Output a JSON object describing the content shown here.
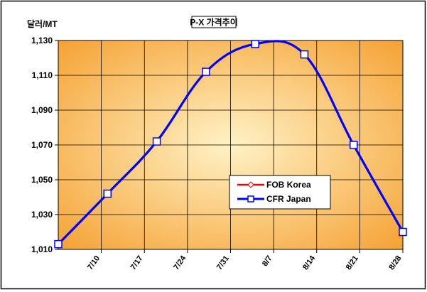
{
  "chart_data": {
    "type": "line",
    "title": "P-X 가격추이",
    "ylabel": "달러/MT",
    "xlabel": "",
    "categories": [
      "7/10",
      "7/17",
      "7/24",
      "7/31",
      "8/7",
      "8/14",
      "8/21",
      "8/28"
    ],
    "ylim": [
      1010,
      1130
    ],
    "yticks": [
      1010,
      1030,
      1050,
      1070,
      1090,
      1110,
      1130
    ],
    "ytick_labels": [
      "1,010",
      "1,030",
      "1,050",
      "1,070",
      "1,090",
      "1,110",
      "1,130"
    ],
    "grid": true,
    "legend_position": "center-right",
    "series": [
      {
        "name": "FOB Korea",
        "color": "#ff0000",
        "marker": "diamond",
        "values": [
          1013,
          1042,
          1072,
          1112,
          1128,
          1122,
          1070,
          1020
        ]
      },
      {
        "name": "CFR Japan",
        "color": "#0000ff",
        "marker": "square",
        "values": [
          1013,
          1042,
          1072,
          1112,
          1128,
          1122,
          1070,
          1020
        ]
      }
    ],
    "background": "#f5a030",
    "background_center": "#fff2c6"
  }
}
